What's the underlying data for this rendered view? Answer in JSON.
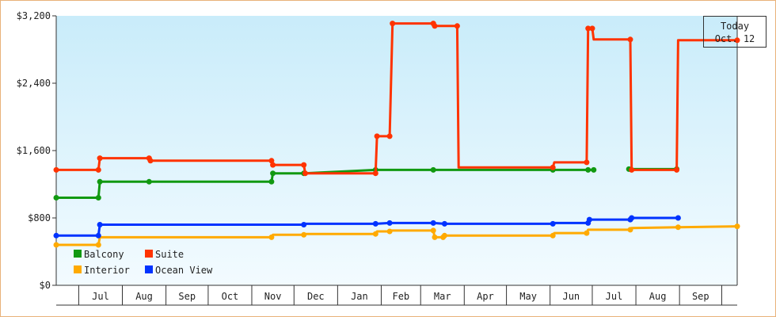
{
  "chart_data": {
    "type": "line",
    "step": true,
    "x_axis_type": "date",
    "x_range": [
      "2016-06-15",
      "2017-10-12"
    ],
    "ylim": [
      0,
      3200
    ],
    "y_tick_values": [
      0,
      800,
      1600,
      2400,
      3200
    ],
    "y_tick_labels": [
      "$0",
      "$800",
      "$1,600",
      "$2,400",
      "$3,200"
    ],
    "x_tick_labels": [
      {
        "label": "Jul",
        "date": "2016-07-01"
      },
      {
        "label": "Aug",
        "date": "2016-08-01"
      },
      {
        "label": "Sep",
        "date": "2016-09-01"
      },
      {
        "label": "Oct",
        "date": "2016-10-01"
      },
      {
        "label": "Nov",
        "date": "2016-11-01"
      },
      {
        "label": "Dec",
        "date": "2016-12-01"
      },
      {
        "label": "Jan",
        "date": "2017-01-01"
      },
      {
        "label": "Feb",
        "date": "2017-02-01"
      },
      {
        "label": "Mar",
        "date": "2017-03-01"
      },
      {
        "label": "Apr",
        "date": "2017-04-01"
      },
      {
        "label": "May",
        "date": "2017-05-01"
      },
      {
        "label": "Jun",
        "date": "2017-06-01"
      },
      {
        "label": "Jul",
        "date": "2017-07-01"
      },
      {
        "label": "Aug",
        "date": "2017-08-01"
      },
      {
        "label": "Sep",
        "date": "2017-09-01"
      }
    ],
    "today": {
      "line1": "Today",
      "line2": "Oct. 12",
      "date": "2017-10-12"
    },
    "legend_position": "bottom-left",
    "grid": false,
    "colors": {
      "plot_top": "#c9ecfa",
      "plot_bottom": "#f3fbff",
      "axis": "#333333",
      "frame": "#e8b27a"
    },
    "series": [
      {
        "name": "Balcony",
        "color": "#119911",
        "points": [
          [
            "2016-06-15",
            1040
          ],
          [
            "2016-07-15",
            1040
          ],
          [
            "2016-07-16",
            1230
          ],
          [
            "2016-08-20",
            1230
          ],
          [
            "2016-11-15",
            1230
          ],
          [
            "2016-11-16",
            1330
          ],
          [
            "2016-12-08",
            1330
          ],
          [
            "2017-01-28",
            1370
          ],
          [
            "2017-03-10",
            1370
          ],
          [
            "2017-06-03",
            1370
          ],
          [
            "2017-06-28",
            1370
          ],
          [
            "2017-07-02",
            1370
          ]
        ],
        "gaps_after": [
          11
        ],
        "segments": [
          [
            [
              "2017-07-27",
              1380
            ],
            [
              "2017-08-30",
              1380
            ]
          ]
        ]
      },
      {
        "name": "Suite",
        "color": "#ff3300",
        "points": [
          [
            "2016-06-15",
            1370
          ],
          [
            "2016-07-15",
            1370
          ],
          [
            "2016-07-16",
            1510
          ],
          [
            "2016-08-20",
            1510
          ],
          [
            "2016-08-21",
            1480
          ],
          [
            "2016-11-15",
            1480
          ],
          [
            "2016-11-16",
            1430
          ],
          [
            "2016-12-08",
            1430
          ],
          [
            "2016-12-09",
            1330
          ],
          [
            "2017-01-28",
            1330
          ],
          [
            "2017-01-29",
            1770
          ],
          [
            "2017-02-07",
            1770
          ],
          [
            "2017-02-09",
            3110
          ],
          [
            "2017-03-10",
            3110
          ],
          [
            "2017-03-11",
            3080
          ],
          [
            "2017-03-27",
            3080
          ],
          [
            "2017-03-28",
            1400
          ],
          [
            "2017-06-03",
            1400
          ],
          [
            "2017-06-04",
            1460
          ],
          [
            "2017-06-27",
            1460
          ],
          [
            "2017-06-28",
            3050
          ],
          [
            "2017-07-01",
            3050
          ],
          [
            "2017-07-02",
            2920
          ],
          [
            "2017-07-28",
            2920
          ],
          [
            "2017-07-29",
            1370
          ],
          [
            "2017-08-30",
            1370
          ],
          [
            "2017-08-31",
            2910
          ],
          [
            "2017-10-12",
            2910
          ]
        ]
      },
      {
        "name": "Interior",
        "color": "#ffaa00",
        "points": [
          [
            "2016-06-15",
            480
          ],
          [
            "2016-07-15",
            480
          ],
          [
            "2016-07-16",
            570
          ],
          [
            "2016-11-15",
            570
          ],
          [
            "2016-11-16",
            600
          ],
          [
            "2016-12-08",
            600
          ],
          [
            "2016-12-09",
            610
          ],
          [
            "2017-01-28",
            610
          ],
          [
            "2017-01-29",
            640
          ],
          [
            "2017-02-07",
            640
          ],
          [
            "2017-02-08",
            650
          ],
          [
            "2017-03-10",
            650
          ],
          [
            "2017-03-11",
            570
          ],
          [
            "2017-03-17",
            570
          ],
          [
            "2017-03-18",
            590
          ],
          [
            "2017-06-03",
            590
          ],
          [
            "2017-06-04",
            620
          ],
          [
            "2017-06-27",
            620
          ],
          [
            "2017-06-28",
            660
          ],
          [
            "2017-07-28",
            660
          ],
          [
            "2017-07-29",
            680
          ],
          [
            "2017-08-31",
            690
          ],
          [
            "2017-10-12",
            700
          ]
        ]
      },
      {
        "name": "Ocean View",
        "color": "#0033ff",
        "points": [
          [
            "2016-06-15",
            590
          ],
          [
            "2016-07-15",
            590
          ],
          [
            "2016-07-16",
            720
          ],
          [
            "2016-12-08",
            720
          ],
          [
            "2016-12-09",
            730
          ],
          [
            "2017-01-28",
            730
          ],
          [
            "2017-02-07",
            740
          ],
          [
            "2017-03-10",
            740
          ],
          [
            "2017-03-18",
            730
          ],
          [
            "2017-06-03",
            730
          ],
          [
            "2017-06-04",
            740
          ],
          [
            "2017-06-28",
            740
          ],
          [
            "2017-06-29",
            780
          ],
          [
            "2017-07-28",
            780
          ],
          [
            "2017-07-29",
            800
          ],
          [
            "2017-08-31",
            800
          ]
        ]
      }
    ],
    "markers": {
      "Balcony": [
        "2016-06-15",
        "2016-07-15",
        "2016-07-16",
        "2016-08-20",
        "2016-11-15",
        "2016-11-16",
        "2016-12-08",
        "2017-01-28",
        "2017-03-10",
        "2017-06-03",
        "2017-06-28",
        "2017-07-02",
        "2017-07-27",
        "2017-08-30"
      ],
      "Suite": [
        "2016-06-15",
        "2016-07-15",
        "2016-07-16",
        "2016-08-20",
        "2016-08-21",
        "2016-11-15",
        "2016-11-16",
        "2016-12-08",
        "2016-12-09",
        "2017-01-28",
        "2017-01-29",
        "2017-02-07",
        "2017-02-09",
        "2017-03-10",
        "2017-03-11",
        "2017-03-27",
        "2017-06-03",
        "2017-06-27",
        "2017-06-28",
        "2017-07-01",
        "2017-07-28",
        "2017-07-29",
        "2017-08-30",
        "2017-10-12"
      ],
      "Interior": [
        "2016-06-15",
        "2016-07-15",
        "2016-11-15",
        "2016-12-08",
        "2017-01-28",
        "2017-02-07",
        "2017-03-10",
        "2017-03-11",
        "2017-03-17",
        "2017-03-18",
        "2017-06-03",
        "2017-06-27",
        "2017-07-28",
        "2017-08-31",
        "2017-10-12"
      ],
      "Ocean View": [
        "2016-06-15",
        "2016-07-15",
        "2016-07-16",
        "2016-12-08",
        "2017-01-28",
        "2017-02-07",
        "2017-03-10",
        "2017-03-18",
        "2017-06-03",
        "2017-06-28",
        "2017-06-29",
        "2017-07-28",
        "2017-07-29",
        "2017-08-31"
      ]
    }
  }
}
